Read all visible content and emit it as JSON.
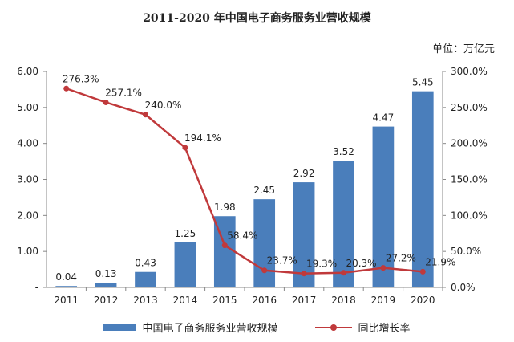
{
  "title": "2011-2020 年中国电子商务服务业营收规模",
  "unit_label": "单位：万亿元",
  "colors": {
    "bar": "#4a7ebb",
    "line": "#c0393b",
    "axis": "#888888"
  },
  "chart_data": {
    "type": "bar",
    "categories": [
      "2011",
      "2012",
      "2013",
      "2014",
      "2015",
      "2016",
      "2017",
      "2018",
      "2019",
      "2020"
    ],
    "series": [
      {
        "name": "中国电子商务服务业营收规模",
        "type": "bar",
        "axis": "left",
        "values": [
          0.04,
          0.13,
          0.43,
          1.25,
          1.98,
          2.45,
          2.92,
          3.52,
          4.47,
          5.45
        ],
        "labels": [
          "0.04",
          "0.13",
          "0.43",
          "1.25",
          "1.98",
          "2.45",
          "2.92",
          "3.52",
          "4.47",
          "5.45"
        ]
      },
      {
        "name": "同比增长率",
        "type": "line",
        "axis": "right",
        "values": [
          276.3,
          257.1,
          240.0,
          194.1,
          58.4,
          23.7,
          19.3,
          20.3,
          27.2,
          21.9
        ],
        "labels": [
          "276.3%",
          "257.1%",
          "240.0%",
          "194.1%",
          "58.4%",
          "23.7%",
          "19.3%",
          "20.3%",
          "27.2%",
          "21.9%"
        ]
      }
    ],
    "y_left": {
      "ylim": [
        0,
        6
      ],
      "ticks": [
        "-",
        "1.00",
        "2.00",
        "3.00",
        "4.00",
        "5.00",
        "6.00"
      ]
    },
    "y_right": {
      "ylim": [
        0,
        300
      ],
      "ticks": [
        "0.0%",
        "50.0%",
        "100.0%",
        "150.0%",
        "200.0%",
        "250.0%",
        "300.0%"
      ]
    },
    "legend": "bottom",
    "grid": false
  }
}
